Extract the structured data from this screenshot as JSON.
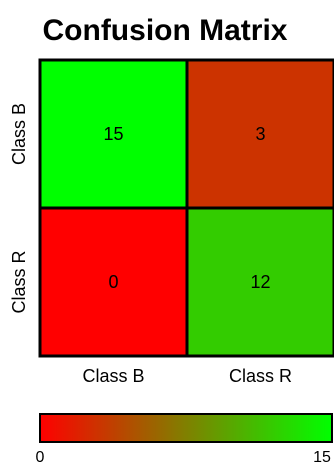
{
  "chart_data": {
    "type": "heatmap",
    "title": "Confusion Matrix",
    "rows": [
      "Class B",
      "Class R"
    ],
    "columns": [
      "Class B",
      "Class R"
    ],
    "values": [
      [
        15,
        3
      ],
      [
        0,
        12
      ]
    ],
    "colorscale": {
      "min": 0,
      "max": 15,
      "low_color": "#ff0000",
      "high_color": "#00ff00",
      "tick_labels": [
        "0",
        "15"
      ]
    }
  }
}
